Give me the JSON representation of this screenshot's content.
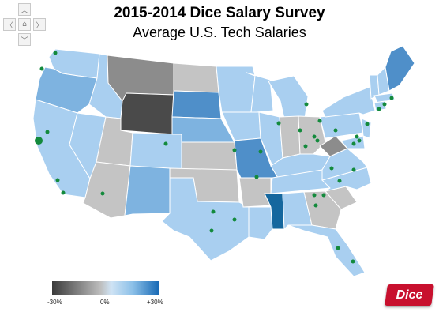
{
  "title": "2015-2014 Dice Salary Survey",
  "subtitle": "Average U.S. Tech Salaries",
  "legend": {
    "labels": [
      "-30%",
      "0%",
      "+30%"
    ]
  },
  "logo": "Dice",
  "colors": {
    "much_below": "#4a4a4a",
    "below": "#8c8c8c",
    "neutral": "#c4c4c4",
    "slight_above": "#a9cff0",
    "above": "#7eb3e0",
    "well_above": "#4f8fc9",
    "top": "#15679e",
    "city_marker": "#138a3c"
  },
  "navigation_icons": [
    "pan-up-icon",
    "pan-left-icon",
    "home-icon",
    "pan-right-icon",
    "pan-down-icon"
  ]
}
